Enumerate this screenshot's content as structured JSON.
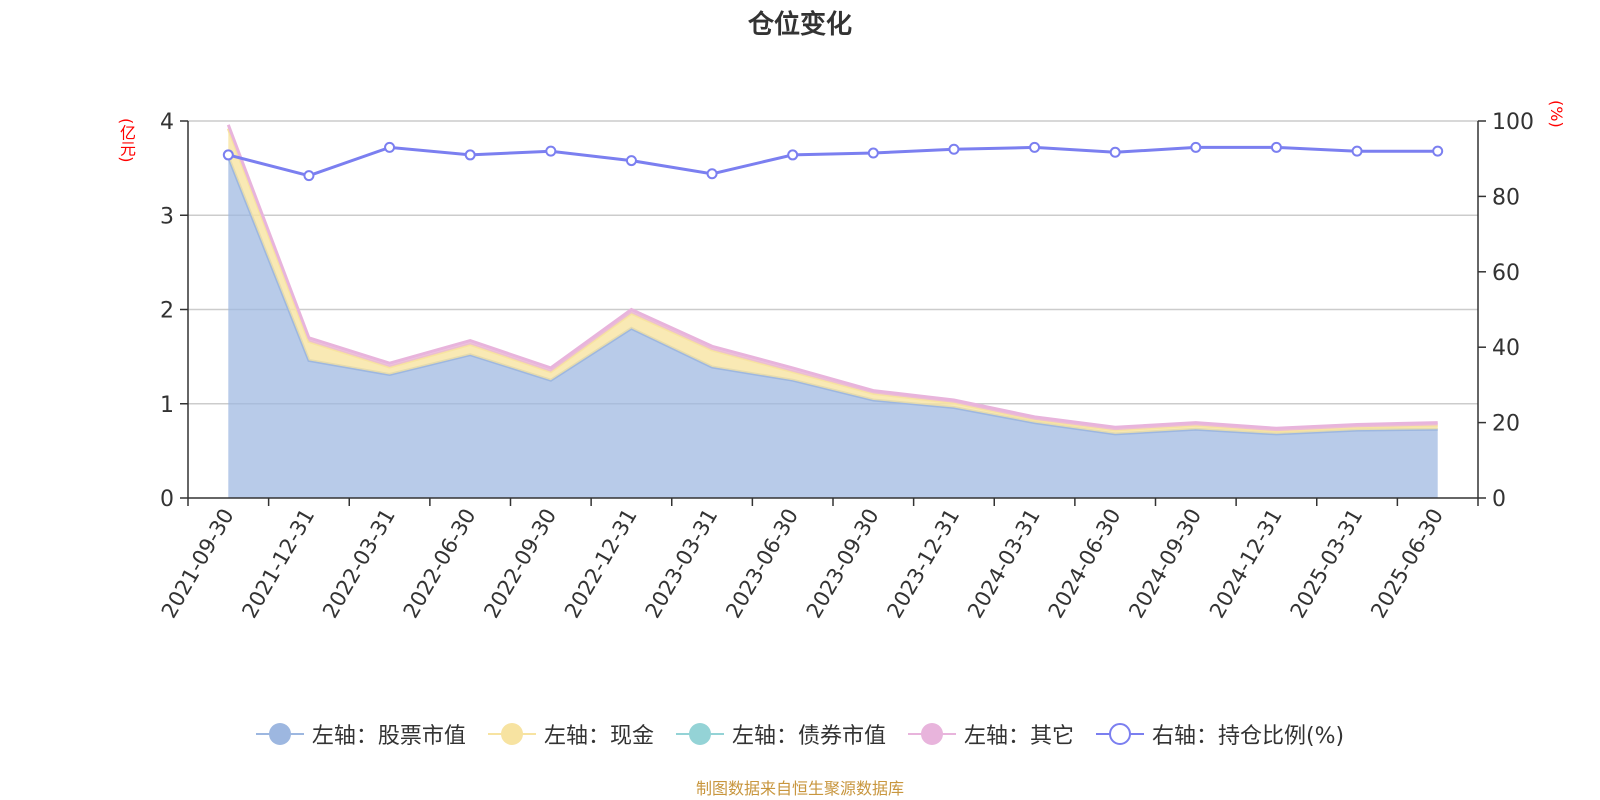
{
  "chart_data": {
    "type": "area",
    "title": "仓位变化",
    "left_unit": "(亿元)",
    "right_unit": "(%)",
    "categories": [
      "2021-09-30",
      "2021-12-31",
      "2022-03-31",
      "2022-06-30",
      "2022-09-30",
      "2022-12-31",
      "2023-03-31",
      "2023-06-30",
      "2023-09-30",
      "2023-12-31",
      "2024-03-31",
      "2024-06-30",
      "2024-09-30",
      "2024-12-31",
      "2025-03-31",
      "2025-06-30"
    ],
    "y_left": {
      "range": [
        0,
        4
      ],
      "ticks": [
        "0",
        "1",
        "2",
        "3",
        "4"
      ]
    },
    "y_right": {
      "range": [
        0,
        100
      ],
      "ticks": [
        "0",
        "20",
        "40",
        "60",
        "80",
        "100"
      ]
    },
    "grid": true,
    "stacked": true,
    "series": [
      {
        "name": "左轴：股票市值",
        "axis": "left",
        "color": "#9db7e0",
        "values": [
          3.62,
          1.46,
          1.31,
          1.52,
          1.25,
          1.8,
          1.39,
          1.25,
          1.04,
          0.96,
          0.8,
          0.68,
          0.73,
          0.68,
          0.72,
          0.73
        ]
      },
      {
        "name": "左轴：现金",
        "axis": "left",
        "color": "#f7e3a1",
        "values": [
          0.3,
          0.2,
          0.08,
          0.11,
          0.09,
          0.16,
          0.18,
          0.09,
          0.07,
          0.05,
          0.03,
          0.04,
          0.04,
          0.03,
          0.03,
          0.04
        ]
      },
      {
        "name": "左轴：债券市值",
        "axis": "left",
        "color": "#94d3d6",
        "values": [
          0,
          0,
          0,
          0,
          0,
          0,
          0,
          0,
          0,
          0,
          0,
          0,
          0,
          0,
          0,
          0
        ]
      },
      {
        "name": "左轴：其它",
        "axis": "left",
        "color": "#e8b4dc",
        "values": [
          0.04,
          0.04,
          0.04,
          0.04,
          0.04,
          0.04,
          0.04,
          0.04,
          0.03,
          0.03,
          0.03,
          0.03,
          0.03,
          0.03,
          0.03,
          0.03
        ]
      },
      {
        "name": "右轴：持仓比例(%)",
        "axis": "right",
        "color": "#7b7ff0",
        "values": [
          91,
          85.5,
          93,
          91,
          92,
          89.5,
          86,
          91,
          91.5,
          92.5,
          93,
          91.7,
          93,
          93,
          92,
          92
        ]
      }
    ]
  },
  "footer": "制图数据来自恒生聚源数据库"
}
